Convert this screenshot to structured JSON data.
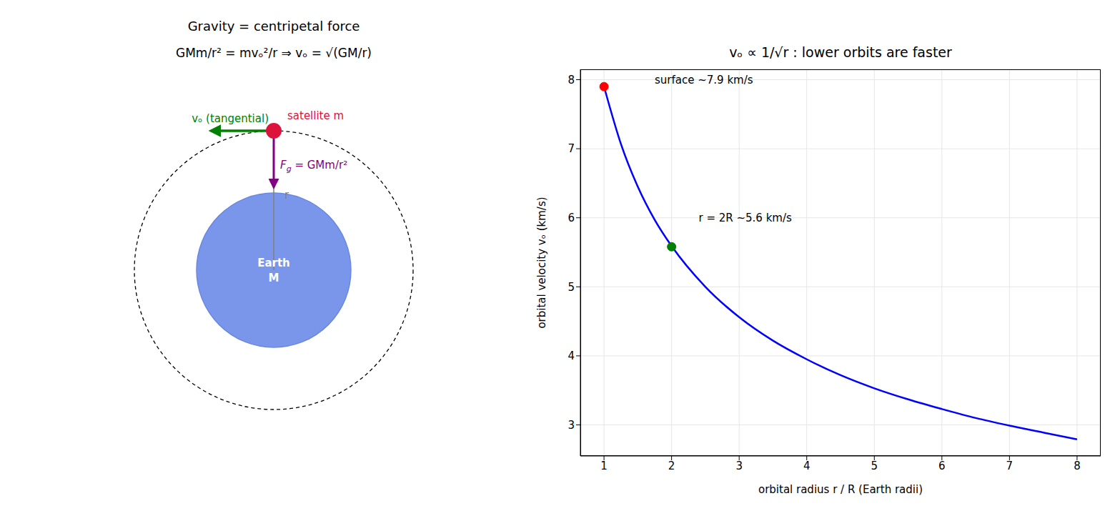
{
  "diagram": {
    "title": "Gravity = centripetal force",
    "formula": "GMm/r² = mvₒ²/r ⇒ vₒ = √(GM/r)",
    "velocity_label": "vₒ (tangential)",
    "satellite_label": "satellite m",
    "force_label": {
      "text": "F",
      "subscript": "g",
      "rest": " = GMm/r²"
    },
    "radius_label": "r",
    "earth_label": [
      "Earth",
      "M"
    ]
  },
  "chart_data": {
    "type": "line",
    "title": "vₒ ∝ 1/√r : lower orbits are faster",
    "x_label": "orbital radius  r / R (Earth radii)",
    "y_label": "orbital velocity  vₒ (km/s)",
    "x": [
      1,
      1.25,
      1.5,
      1.75,
      2,
      2.5,
      3,
      3.5,
      4,
      4.5,
      5,
      5.5,
      6,
      6.5,
      7,
      7.5,
      8
    ],
    "values": [
      7.9,
      7.07,
      6.45,
      5.97,
      5.59,
      5.0,
      4.56,
      4.22,
      3.95,
      3.72,
      3.53,
      3.37,
      3.23,
      3.1,
      2.99,
      2.89,
      2.79
    ],
    "color": "#0000ff",
    "points": [
      {
        "x": 1,
        "y": 7.9,
        "color": "#ff0000"
      },
      {
        "x": 2,
        "y": 5.58,
        "color": "#008000"
      }
    ],
    "annotations": [
      {
        "text": "surface ~7.9 km/s",
        "x": 1.75,
        "y": 8.0
      },
      {
        "text": "r = 2R ~5.6 km/s",
        "x": 2.4,
        "y": 6.0
      }
    ],
    "xlim": [
      0.65,
      8.35
    ],
    "xticks": [
      1,
      2,
      3,
      4,
      5,
      6,
      7,
      8
    ],
    "ylim": [
      2.55,
      8.15
    ],
    "yticks": [
      3,
      4,
      5,
      6,
      7,
      8
    ],
    "grid": true
  }
}
